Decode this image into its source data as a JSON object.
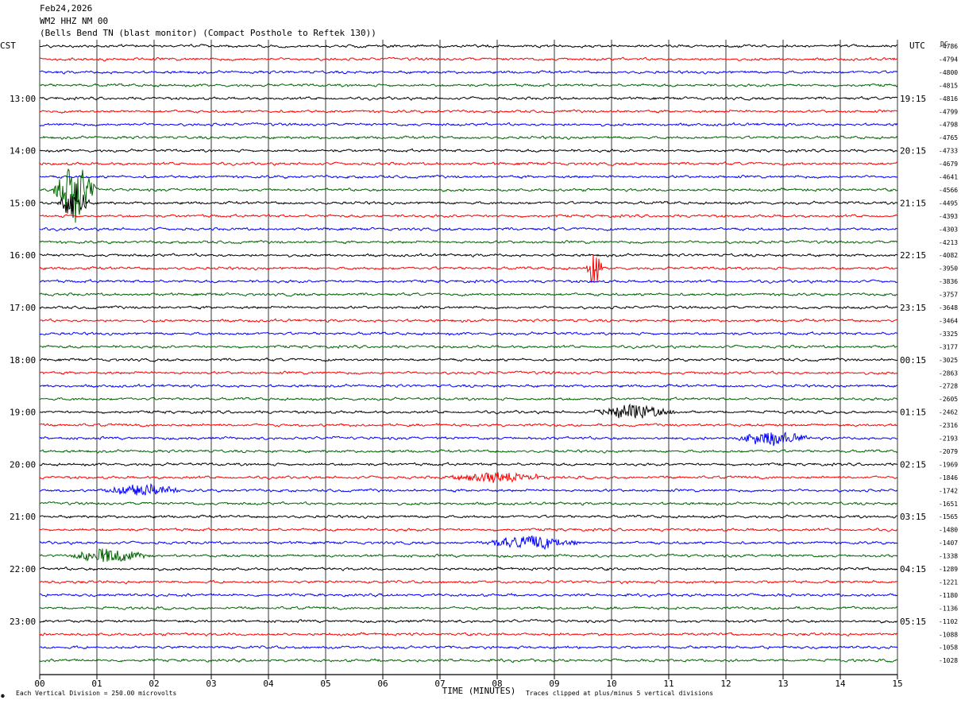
{
  "header": {
    "date": "Feb24,2026",
    "station": "WM2 HHZ NM 00",
    "description": "(Bells Bend TN (blast monitor) (Compact Posthole to Reftek 130))"
  },
  "left_tz": "CST",
  "right_tz": "UTC",
  "dc_header": "DC",
  "footer": {
    "mark": "⚉",
    "scale": "Each Vertical Division =  250.00 microvolts",
    "clip": "Traces clipped at plus/minus 5 vertical divisions"
  },
  "colors": {
    "trace_cycle": [
      "#000000",
      "#ff0000",
      "#0000ff",
      "#006400"
    ],
    "grid": "#000000",
    "background": "#ffffff"
  },
  "chart_data": {
    "type": "helicorder",
    "xlabel": "TIME (MINUTES)",
    "xlim": [
      0,
      15
    ],
    "x_ticks": [
      "00",
      "01",
      "02",
      "03",
      "04",
      "05",
      "06",
      "07",
      "08",
      "09",
      "10",
      "11",
      "12",
      "13",
      "14",
      "15"
    ],
    "line_minutes": 15,
    "num_lines": 48,
    "left_hour_labels": [
      "13:00",
      "14:00",
      "15:00",
      "16:00",
      "17:00",
      "18:00",
      "19:00",
      "20:00",
      "21:00",
      "22:00",
      "23:00"
    ],
    "right_hour_labels": [
      "19:15",
      "20:15",
      "21:15",
      "22:15",
      "23:15",
      "00:15",
      "01:15",
      "02:15",
      "03:15",
      "04:15",
      "05:15"
    ],
    "hour_label_first_line": 4,
    "dc_offsets": [
      -4786,
      -4794,
      -4800,
      -4815,
      -4816,
      -4799,
      -4798,
      -4765,
      -4733,
      -4679,
      -4641,
      -4566,
      -4495,
      -4393,
      -4303,
      -4213,
      -4082,
      -3950,
      -3836,
      -3757,
      -3648,
      -3464,
      -3325,
      -3177,
      -3025,
      -2863,
      -2728,
      -2605,
      -2462,
      -2316,
      -2193,
      -2079,
      -1969,
      -1846,
      -1742,
      -1651,
      -1565,
      -1480,
      -1407,
      -1338,
      -1289,
      -1221,
      -1180,
      -1136,
      -1102,
      -1088,
      -1058,
      -1028
    ],
    "events": [
      {
        "line": 11,
        "minute": 0.6,
        "amplitude_divisions": 5,
        "width_minutes": 0.4
      },
      {
        "line": 12,
        "minute": 0.6,
        "amplitude_divisions": 3,
        "width_minutes": 0.3
      },
      {
        "line": 17,
        "minute": 9.7,
        "amplitude_divisions": 3,
        "width_minutes": 0.15
      },
      {
        "line": 28,
        "minute": 10.4,
        "amplitude_divisions": 1.2,
        "width_minutes": 0.8
      },
      {
        "line": 30,
        "minute": 12.8,
        "amplitude_divisions": 1.0,
        "width_minutes": 0.8
      },
      {
        "line": 33,
        "minute": 8.0,
        "amplitude_divisions": 0.8,
        "width_minutes": 1.0
      },
      {
        "line": 34,
        "minute": 1.8,
        "amplitude_divisions": 1.0,
        "width_minutes": 0.8
      },
      {
        "line": 38,
        "minute": 8.6,
        "amplitude_divisions": 1.0,
        "width_minutes": 1.0
      },
      {
        "line": 39,
        "minute": 1.2,
        "amplitude_divisions": 1.1,
        "width_minutes": 0.8
      }
    ]
  }
}
